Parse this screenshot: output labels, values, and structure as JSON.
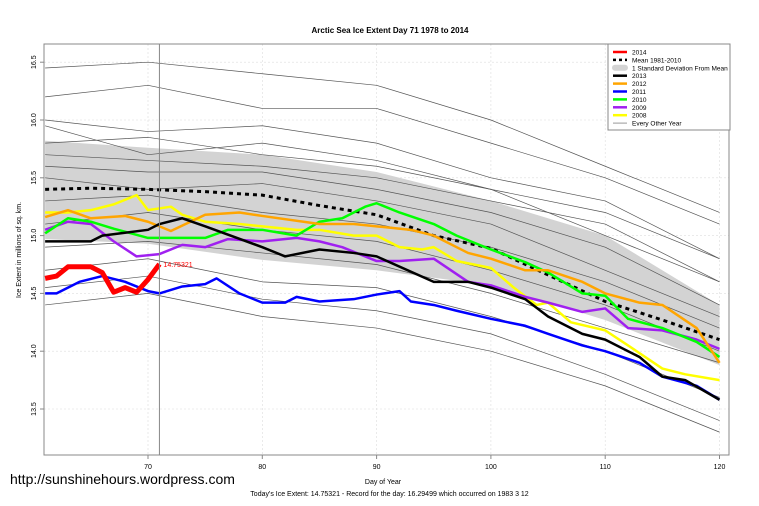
{
  "chart_data": {
    "type": "line",
    "title": "Arctic Sea Ice Extent Day 71 1978 to 2014",
    "xlabel": "Day of Year",
    "ylabel": "Ice Extent in millions of sq. km.",
    "xlim": [
      61,
      121
    ],
    "ylim": [
      13.2,
      16.7
    ],
    "xticks": [
      70,
      80,
      90,
      100,
      110,
      120
    ],
    "yticks": [
      "13.5",
      "14.0",
      "14.5",
      "15.0",
      "15.5",
      "16.0",
      "16.5"
    ],
    "grid": true,
    "legend_position": "top-right",
    "current_day": 71,
    "point_label": "14.75321",
    "footer": "Today's Ice Extent: 14.75321  - Record for the day: 16.29499 which occurred on 1983 3 12",
    "std_band": {
      "name": "1 Standard Deviation From Mean",
      "x": [
        61,
        70,
        80,
        90,
        100,
        110,
        120
      ],
      "upper": [
        15.82,
        15.76,
        15.7,
        15.55,
        15.3,
        15.0,
        14.4
      ],
      "lower": [
        14.97,
        14.93,
        14.79,
        14.7,
        14.57,
        14.27,
        13.88
      ],
      "color": "#d3d3d3"
    },
    "series": [
      {
        "name": "Every Other Year",
        "color": "#555555",
        "width": 0.7,
        "dash": "",
        "lines": [
          {
            "x": [
              61,
              70,
              80,
              90,
              100,
              110,
              120
            ],
            "y": [
              16.45,
              16.5,
              16.4,
              16.3,
              16.0,
              15.6,
              15.2
            ]
          },
          {
            "x": [
              61,
              70,
              80,
              90,
              100,
              110,
              120
            ],
            "y": [
              16.2,
              16.3,
              16.1,
              16.1,
              15.8,
              15.5,
              15.1
            ]
          },
          {
            "x": [
              61,
              70,
              80,
              90,
              100,
              110,
              120
            ],
            "y": [
              16.0,
              15.9,
              15.95,
              15.8,
              15.5,
              15.3,
              14.8
            ]
          },
          {
            "x": [
              61,
              70,
              80,
              90,
              100,
              110,
              120
            ],
            "y": [
              15.8,
              15.85,
              15.7,
              15.6,
              15.4,
              15.0,
              14.6
            ]
          },
          {
            "x": [
              61,
              70,
              80,
              90,
              100,
              110,
              120
            ],
            "y": [
              15.6,
              15.55,
              15.55,
              15.4,
              15.2,
              14.9,
              14.4
            ]
          },
          {
            "x": [
              61,
              70,
              80,
              90,
              100,
              110,
              120
            ],
            "y": [
              15.5,
              15.4,
              15.45,
              15.3,
              15.1,
              14.7,
              14.3
            ]
          },
          {
            "x": [
              61,
              70,
              80,
              90,
              100,
              110,
              120
            ],
            "y": [
              15.3,
              15.35,
              15.2,
              15.1,
              14.9,
              14.6,
              14.2
            ]
          },
          {
            "x": [
              61,
              70,
              80,
              90,
              100,
              110,
              120
            ],
            "y": [
              15.1,
              15.2,
              15.05,
              14.95,
              14.7,
              14.4,
              14.0
            ]
          },
          {
            "x": [
              61,
              70,
              80,
              90,
              100,
              110,
              120
            ],
            "y": [
              14.9,
              14.95,
              14.85,
              14.75,
              14.5,
              14.2,
              13.9
            ]
          },
          {
            "x": [
              61,
              70,
              80,
              90,
              100,
              110,
              120
            ],
            "y": [
              14.7,
              14.8,
              14.6,
              14.55,
              14.3,
              14.0,
              13.6
            ]
          },
          {
            "x": [
              61,
              70,
              80,
              90,
              100,
              110,
              120
            ],
            "y": [
              14.55,
              14.65,
              14.45,
              14.35,
              14.15,
              13.8,
              13.4
            ]
          },
          {
            "x": [
              61,
              70,
              80,
              90,
              100,
              110,
              120
            ],
            "y": [
              14.4,
              14.5,
              14.3,
              14.2,
              14.0,
              13.7,
              13.3
            ]
          },
          {
            "x": [
              61,
              70,
              80,
              90,
              100,
              110,
              120
            ],
            "y": [
              15.7,
              15.65,
              15.6,
              15.5,
              15.3,
              15.1,
              14.6
            ]
          },
          {
            "x": [
              61,
              70,
              80,
              90,
              100,
              110,
              120
            ],
            "y": [
              15.95,
              15.7,
              15.8,
              15.65,
              15.4,
              15.2,
              14.8
            ]
          }
        ]
      },
      {
        "name": "Mean 1981-2010",
        "color": "#000000",
        "width": 3,
        "dash": "4,4",
        "x": [
          61,
          65,
          70,
          75,
          80,
          85,
          90,
          95,
          100,
          105,
          110,
          115,
          120
        ],
        "y": [
          15.4,
          15.41,
          15.4,
          15.38,
          15.35,
          15.26,
          15.18,
          15.0,
          14.89,
          14.66,
          14.43,
          14.27,
          14.1
        ]
      },
      {
        "name": "2008",
        "color": "#ffff00",
        "width": 2.5,
        "dash": "",
        "x": [
          61,
          63,
          65,
          67,
          69,
          70,
          72,
          73,
          75,
          78,
          80,
          83,
          85,
          88,
          90,
          92,
          94,
          95,
          97,
          100,
          102,
          104,
          105,
          107,
          110,
          112,
          115,
          117,
          120
        ],
        "y": [
          15.2,
          15.2,
          15.22,
          15.27,
          15.35,
          15.22,
          15.25,
          15.18,
          15.12,
          15.1,
          15.08,
          15.05,
          15.05,
          15.0,
          15.0,
          14.9,
          14.88,
          14.9,
          14.78,
          14.72,
          14.55,
          14.4,
          14.42,
          14.25,
          14.18,
          14.05,
          13.85,
          13.8,
          13.75
        ]
      },
      {
        "name": "2009",
        "color": "#a020f0",
        "width": 2.5,
        "dash": "",
        "x": [
          61,
          63,
          65,
          67,
          69,
          71,
          73,
          75,
          77,
          80,
          83,
          85,
          87,
          90,
          92,
          95,
          98,
          100,
          103,
          105,
          108,
          110,
          112,
          115,
          118,
          120
        ],
        "y": [
          15.05,
          15.12,
          15.1,
          14.95,
          14.82,
          14.84,
          14.92,
          14.9,
          14.97,
          14.95,
          14.98,
          14.95,
          14.9,
          14.78,
          14.78,
          14.8,
          14.6,
          14.57,
          14.47,
          14.42,
          14.34,
          14.37,
          14.2,
          14.18,
          14.1,
          14.02
        ]
      },
      {
        "name": "2010",
        "color": "#00ff00",
        "width": 2.5,
        "dash": "",
        "x": [
          61,
          63,
          65,
          67,
          70,
          72,
          75,
          77,
          80,
          83,
          85,
          87,
          89,
          90,
          92,
          95,
          97,
          100,
          103,
          105,
          108,
          110,
          112,
          115,
          118,
          120
        ],
        "y": [
          15.02,
          15.15,
          15.12,
          15.06,
          14.98,
          14.98,
          14.98,
          15.05,
          15.05,
          15.0,
          15.12,
          15.15,
          15.25,
          15.28,
          15.2,
          15.1,
          15.0,
          14.88,
          14.77,
          14.68,
          14.5,
          14.48,
          14.28,
          14.2,
          14.08,
          13.95
        ]
      },
      {
        "name": "2011",
        "color": "#0000ff",
        "width": 2.5,
        "dash": "",
        "x": [
          61,
          62,
          64,
          66,
          68,
          70,
          71,
          73,
          75,
          76,
          78,
          80,
          82,
          83,
          85,
          88,
          90,
          92,
          93,
          95,
          97,
          100,
          103,
          105,
          108,
          110,
          113,
          115,
          118,
          120
        ],
        "y": [
          14.5,
          14.5,
          14.6,
          14.65,
          14.6,
          14.52,
          14.5,
          14.56,
          14.58,
          14.63,
          14.5,
          14.42,
          14.42,
          14.47,
          14.43,
          14.45,
          14.49,
          14.52,
          14.43,
          14.4,
          14.35,
          14.28,
          14.22,
          14.15,
          14.05,
          14.0,
          13.9,
          13.78,
          13.7,
          13.58
        ]
      },
      {
        "name": "2012",
        "color": "#ffa500",
        "width": 2.5,
        "dash": "",
        "x": [
          61,
          63,
          65,
          68,
          70,
          72,
          75,
          78,
          80,
          85,
          88,
          90,
          93,
          95,
          98,
          100,
          103,
          105,
          108,
          110,
          113,
          115,
          118,
          120
        ],
        "y": [
          15.16,
          15.22,
          15.15,
          15.17,
          15.12,
          15.04,
          15.18,
          15.2,
          15.17,
          15.1,
          15.1,
          15.08,
          15.05,
          15.0,
          14.85,
          14.8,
          14.7,
          14.7,
          14.6,
          14.5,
          14.42,
          14.4,
          14.2,
          13.9
        ]
      },
      {
        "name": "2013",
        "color": "#000000",
        "width": 2.5,
        "dash": "",
        "x": [
          61,
          65,
          66,
          70,
          71,
          73,
          75,
          80,
          82,
          85,
          88,
          90,
          95,
          98,
          100,
          103,
          105,
          108,
          110,
          113,
          115,
          117,
          120
        ],
        "y": [
          14.95,
          14.95,
          15.0,
          15.05,
          15.1,
          15.15,
          15.08,
          14.9,
          14.82,
          14.88,
          14.85,
          14.82,
          14.6,
          14.6,
          14.55,
          14.45,
          14.3,
          14.15,
          14.1,
          13.95,
          13.78,
          13.75,
          13.58
        ]
      },
      {
        "name": "2014",
        "color": "#ff0000",
        "width": 5,
        "dash": "",
        "x": [
          61,
          62,
          63,
          64,
          65,
          66,
          67,
          68,
          69,
          70,
          71
        ],
        "y": [
          14.63,
          14.65,
          14.73,
          14.73,
          14.73,
          14.68,
          14.51,
          14.55,
          14.51,
          14.62,
          14.75321
        ]
      }
    ],
    "legend": [
      {
        "label": "2014",
        "color": "#ff0000",
        "kind": "line"
      },
      {
        "label": "Mean 1981-2010",
        "color": "#000000",
        "kind": "dash"
      },
      {
        "label": "1 Standard Deviation From Mean",
        "color": "#d3d3d3",
        "kind": "box"
      },
      {
        "label": "2013",
        "color": "#000000",
        "kind": "line"
      },
      {
        "label": "2012",
        "color": "#ffa500",
        "kind": "line"
      },
      {
        "label": "2011",
        "color": "#0000ff",
        "kind": "line"
      },
      {
        "label": "2010",
        "color": "#00ff00",
        "kind": "line"
      },
      {
        "label": "2009",
        "color": "#a020f0",
        "kind": "line"
      },
      {
        "label": "2008",
        "color": "#ffff00",
        "kind": "line"
      },
      {
        "label": "Every Other Year",
        "color": "#999999",
        "kind": "thin"
      }
    ]
  },
  "watermark": "http://sunshinehours.wordpress.com"
}
